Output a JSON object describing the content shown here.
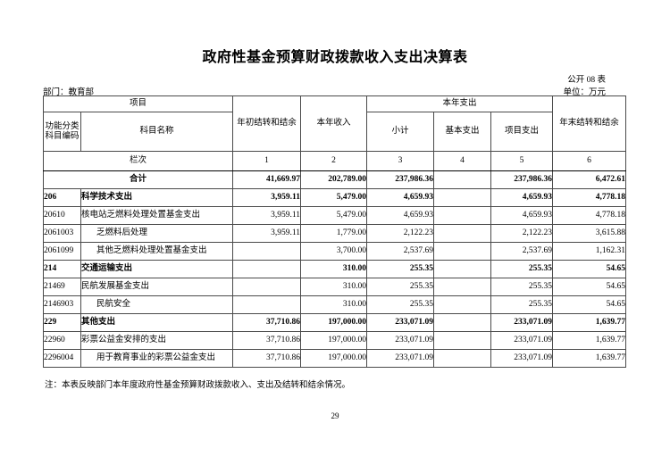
{
  "page": {
    "title": "政府性基金预算财政拨款收入支出决算表",
    "form_number": "公开 08 表",
    "department_label": "部门：教育部",
    "unit_label": "单位：万元",
    "note": "注：本表反映部门本年度政府性基金预算财政拨款收入、支出及结转和结余情况。",
    "page_number": "29"
  },
  "colors": {
    "text": "#000000",
    "border": "#000000",
    "background": "#ffffff"
  },
  "table": {
    "header": {
      "project": "项目",
      "code_line1": "功能分类",
      "code_line2": "科目编码",
      "subject_name": "科目名称",
      "opening_balance": "年初结转和结余",
      "current_income": "本年收入",
      "current_expenditure": "本年支出",
      "subtotal": "小计",
      "basic_expenditure": "基本支出",
      "project_expenditure": "项目支出",
      "closing_balance": "年末结转和结余",
      "column_row_label": "栏次",
      "column_numbers": [
        "1",
        "2",
        "3",
        "4",
        "5",
        "6"
      ]
    },
    "rows": [
      {
        "code": "",
        "name": "合计",
        "bold": true,
        "total": true,
        "indent": 0,
        "values": [
          "41,669.97",
          "202,789.00",
          "237,986.36",
          "",
          "237,986.36",
          "6,472.61"
        ]
      },
      {
        "code": "206",
        "name": "科学技术支出",
        "bold": true,
        "total": false,
        "indent": 0,
        "values": [
          "3,959.11",
          "5,479.00",
          "4,659.93",
          "",
          "4,659.93",
          "4,778.18"
        ]
      },
      {
        "code": "20610",
        "name": "核电站乏燃料处理处置基金支出",
        "bold": false,
        "total": false,
        "indent": 0,
        "values": [
          "3,959.11",
          "5,479.00",
          "4,659.93",
          "",
          "4,659.93",
          "4,778.18"
        ]
      },
      {
        "code": "2061003",
        "name": "乏燃料后处理",
        "bold": false,
        "total": false,
        "indent": 1,
        "values": [
          "3,959.11",
          "1,779.00",
          "2,122.23",
          "",
          "2,122.23",
          "3,615.88"
        ]
      },
      {
        "code": "2061099",
        "name": "其他乏燃料处理处置基金支出",
        "bold": false,
        "total": false,
        "indent": 1,
        "values": [
          "",
          "3,700.00",
          "2,537.69",
          "",
          "2,537.69",
          "1,162.31"
        ]
      },
      {
        "code": "214",
        "name": "交通运输支出",
        "bold": true,
        "total": false,
        "indent": 0,
        "values": [
          "",
          "310.00",
          "255.35",
          "",
          "255.35",
          "54.65"
        ]
      },
      {
        "code": "21469",
        "name": "民航发展基金支出",
        "bold": false,
        "total": false,
        "indent": 0,
        "values": [
          "",
          "310.00",
          "255.35",
          "",
          "255.35",
          "54.65"
        ]
      },
      {
        "code": "2146903",
        "name": "民航安全",
        "bold": false,
        "total": false,
        "indent": 1,
        "values": [
          "",
          "310.00",
          "255.35",
          "",
          "255.35",
          "54.65"
        ]
      },
      {
        "code": "229",
        "name": "其他支出",
        "bold": true,
        "total": false,
        "indent": 0,
        "values": [
          "37,710.86",
          "197,000.00",
          "233,071.09",
          "",
          "233,071.09",
          "1,639.77"
        ]
      },
      {
        "code": "22960",
        "name": "彩票公益金安排的支出",
        "bold": false,
        "total": false,
        "indent": 0,
        "values": [
          "37,710.86",
          "197,000.00",
          "233,071.09",
          "",
          "233,071.09",
          "1,639.77"
        ]
      },
      {
        "code": "2296004",
        "name": "用于教育事业的彩票公益金支出",
        "bold": false,
        "total": false,
        "indent": 1,
        "values": [
          "37,710.86",
          "197,000.00",
          "233,071.09",
          "",
          "233,071.09",
          "1,639.77"
        ]
      }
    ]
  }
}
